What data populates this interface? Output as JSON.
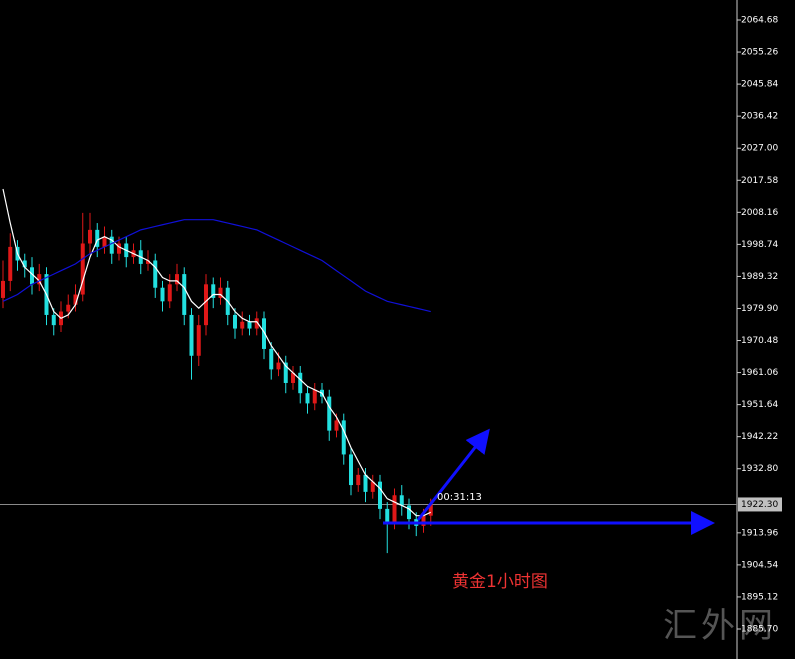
{
  "chart_data": {
    "type": "candlestick",
    "up_color": "#e01818",
    "down_color": "#22e0e0",
    "open": [
      1983,
      1988,
      1998,
      1994,
      1992,
      1987,
      1990,
      1978,
      1975,
      1979,
      1981,
      1984,
      1999,
      2003,
      1998,
      2001,
      1996,
      1999,
      1995,
      1997,
      1993,
      1994,
      1986,
      1982,
      1987,
      1990,
      1978,
      1966,
      1975,
      1987,
      1983,
      1986,
      1978,
      1974,
      1976,
      1974,
      1977,
      1968,
      1962,
      1964,
      1958,
      1961,
      1955,
      1952,
      1956,
      1954,
      1944,
      1947,
      1937,
      1928,
      1931,
      1926,
      1929,
      1921,
      1917,
      1925,
      1922,
      1918,
      1916,
      1919
    ],
    "high": [
      1994,
      2002,
      2000,
      1996,
      1995,
      1993,
      1992,
      1980,
      1982,
      1984,
      1987,
      2008,
      2008,
      2005,
      2004,
      2003,
      2001,
      2001,
      1999,
      2000,
      1997,
      1996,
      1988,
      1990,
      1993,
      1992,
      1980,
      1978,
      1990,
      1989,
      1989,
      1988,
      1980,
      1979,
      1978,
      1979,
      1979,
      1970,
      1967,
      1966,
      1963,
      1963,
      1957,
      1958,
      1958,
      1956,
      1949,
      1949,
      1939,
      1933,
      1933,
      1931,
      1931,
      1923,
      1927,
      1928,
      1924,
      1920,
      1921,
      1924
    ],
    "low": [
      1980,
      1985,
      1991,
      1989,
      1984,
      1985,
      1975,
      1972,
      1973,
      1977,
      1979,
      1982,
      1996,
      1995,
      1996,
      1993,
      1994,
      1992,
      1993,
      1990,
      1991,
      1983,
      1979,
      1980,
      1985,
      1975,
      1959,
      1963,
      1972,
      1980,
      1981,
      1975,
      1971,
      1972,
      1972,
      1972,
      1965,
      1959,
      1960,
      1955,
      1956,
      1952,
      1949,
      1950,
      1952,
      1941,
      1942,
      1934,
      1925,
      1926,
      1923,
      1924,
      1918,
      1908,
      1915,
      1919,
      1915,
      1913,
      1914,
      1916
    ],
    "close": [
      1988,
      1998,
      1994,
      1992,
      1987,
      1990,
      1978,
      1975,
      1979,
      1981,
      1984,
      1999,
      2003,
      1998,
      2001,
      1996,
      1999,
      1995,
      1997,
      1993,
      1994,
      1986,
      1982,
      1987,
      1990,
      1978,
      1966,
      1975,
      1987,
      1983,
      1986,
      1978,
      1974,
      1976,
      1974,
      1977,
      1968,
      1962,
      1964,
      1958,
      1961,
      1955,
      1952,
      1956,
      1954,
      1944,
      1947,
      1937,
      1928,
      1931,
      1926,
      1929,
      1921,
      1917,
      1925,
      1922,
      1918,
      1916,
      1919,
      1922.3
    ],
    "ma": [
      {
        "color": "#ffffff",
        "values": [
          2015,
          2005,
          1996,
          1992,
          1990,
          1988,
          1984,
          1979,
          1977,
          1978,
          1981,
          1988,
          1995,
          2000,
          2001,
          2000,
          1998,
          1997,
          1996,
          1995,
          1994,
          1992,
          1989,
          1988,
          1988,
          1986,
          1982,
          1980,
          1982,
          1984,
          1984,
          1982,
          1979,
          1977,
          1976,
          1976,
          1973,
          1969,
          1966,
          1963,
          1961,
          1959,
          1957,
          1956,
          1955,
          1951,
          1948,
          1944,
          1939,
          1935,
          1931,
          1929,
          1927,
          1924,
          1923,
          1922,
          1921,
          1919,
          1919,
          1920
        ]
      },
      {
        "color": "#1010d8",
        "values": [
          1982,
          1983,
          1984,
          1985.5,
          1987,
          1988,
          1989,
          1990,
          1991,
          1992,
          1993,
          1994.5,
          1996,
          1997,
          1998,
          1999,
          2000,
          2001,
          2002,
          2003,
          2003.5,
          2004,
          2004.5,
          2005,
          2005.5,
          2006,
          2006,
          2006,
          2006,
          2006,
          2005.5,
          2005,
          2004.5,
          2004,
          2003.5,
          2003,
          2002,
          2001,
          2000,
          1999,
          1998,
          1997,
          1996,
          1995,
          1994,
          1992.5,
          1991,
          1989.5,
          1988,
          1986.5,
          1985,
          1984,
          1983,
          1982,
          1981.5,
          1981,
          1980.5,
          1980,
          1979.5,
          1979
        ]
      }
    ],
    "current_price": {
      "value": 1922.3,
      "label": "1922.30"
    },
    "countdown": "00:31:13",
    "annotation": "黄金1小时图",
    "watermark": "汇外网",
    "ylim": [
      1876.88,
      2070.56
    ],
    "yticks": [
      2064.68,
      2055.26,
      2045.84,
      2036.42,
      {
        "value": 2027.0,
        "label": "2027.00"
      },
      2017.58,
      2008.16,
      1998.74,
      1989.32,
      {
        "value": 1979.9,
        "label": "1979.90"
      },
      1970.48,
      1961.06,
      1951.64,
      1942.22,
      {
        "value": 1932.8,
        "label": "1932.80"
      },
      1913.96,
      1904.54,
      1895.12,
      {
        "value": 1885.7,
        "label": "1885.70"
      }
    ]
  }
}
